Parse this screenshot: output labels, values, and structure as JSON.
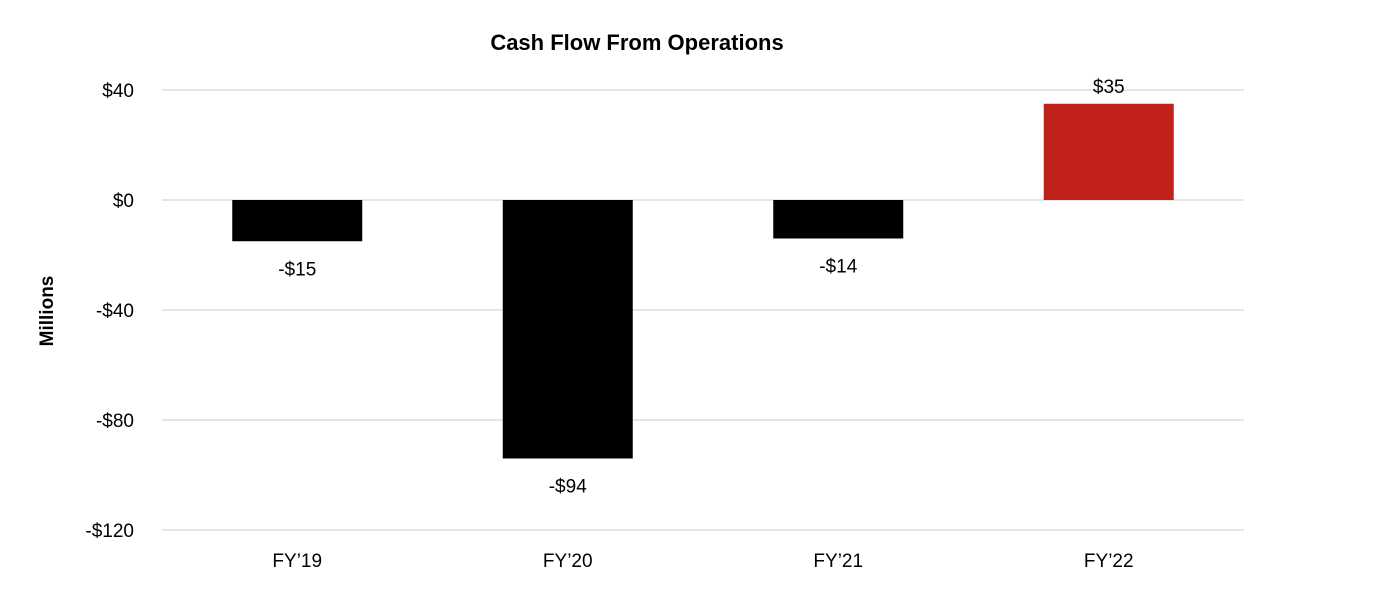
{
  "chart_data": {
    "type": "bar",
    "title": "Cash Flow From Operations",
    "xlabel": "",
    "ylabel": "Millions",
    "categories": [
      "FY’19",
      "FY’20",
      "FY’21",
      "FY’22"
    ],
    "values": [
      -15,
      -94,
      -14,
      35
    ],
    "data_labels": [
      "-$15",
      "-$94",
      "-$14",
      "$35"
    ],
    "bar_colors": [
      "#000000",
      "#000000",
      "#000000",
      "#c0211a"
    ],
    "ylim": [
      -120,
      40
    ],
    "yticks": [
      40,
      0,
      -40,
      -80,
      -120
    ],
    "ytick_labels": [
      "$40",
      "$0",
      "-$40",
      "-$80",
      "-$120"
    ],
    "grid": true,
    "legend": "none"
  }
}
